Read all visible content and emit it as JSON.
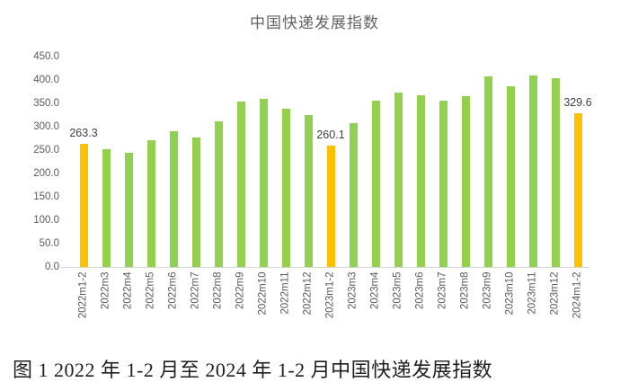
{
  "title": "中国快递发展指数",
  "caption": "图 1  2022 年 1-2 月至 2024 年 1-2 月中国快递发展指数",
  "colors": {
    "bar_green": "#92d050",
    "bar_orange": "#ffc000",
    "axis_text": "#595959",
    "data_label_text": "#3f3f3f",
    "axis_line": "#d6d6d6",
    "title_text": "#636363"
  },
  "chart_data": {
    "type": "bar",
    "title": "中国快递发展指数",
    "categories": [
      "2022m1-2",
      "2022m3",
      "2022m4",
      "2022m5",
      "2022m6",
      "2022m7",
      "2022m8",
      "2022m9",
      "2022m10",
      "2022m11",
      "2022m12",
      "2023m1-2",
      "2023m3",
      "2023m4",
      "2023m5",
      "2023m6",
      "2023m7",
      "2023m8",
      "2023m9",
      "2023m10",
      "2023m11",
      "2023m12",
      "2024m1-2"
    ],
    "values": [
      263.3,
      252,
      244,
      271,
      291,
      276,
      312,
      354,
      360,
      339,
      325,
      260.1,
      308,
      356,
      374,
      367,
      356,
      365,
      408,
      386,
      410,
      403,
      329.6
    ],
    "highlighted_indexes": [
      0,
      11,
      22
    ],
    "data_labels": {
      "0": "263.3",
      "11": "260.1",
      "22": "329.6"
    },
    "ylim": [
      0,
      450
    ],
    "ytick_step": 50,
    "ytick_labels": [
      "0.0",
      "50.0",
      "100.0",
      "150.0",
      "200.0",
      "250.0",
      "300.0",
      "350.0",
      "400.0",
      "450.0"
    ],
    "xlabel": "",
    "ylabel": "",
    "grid": false,
    "legend": "none"
  }
}
